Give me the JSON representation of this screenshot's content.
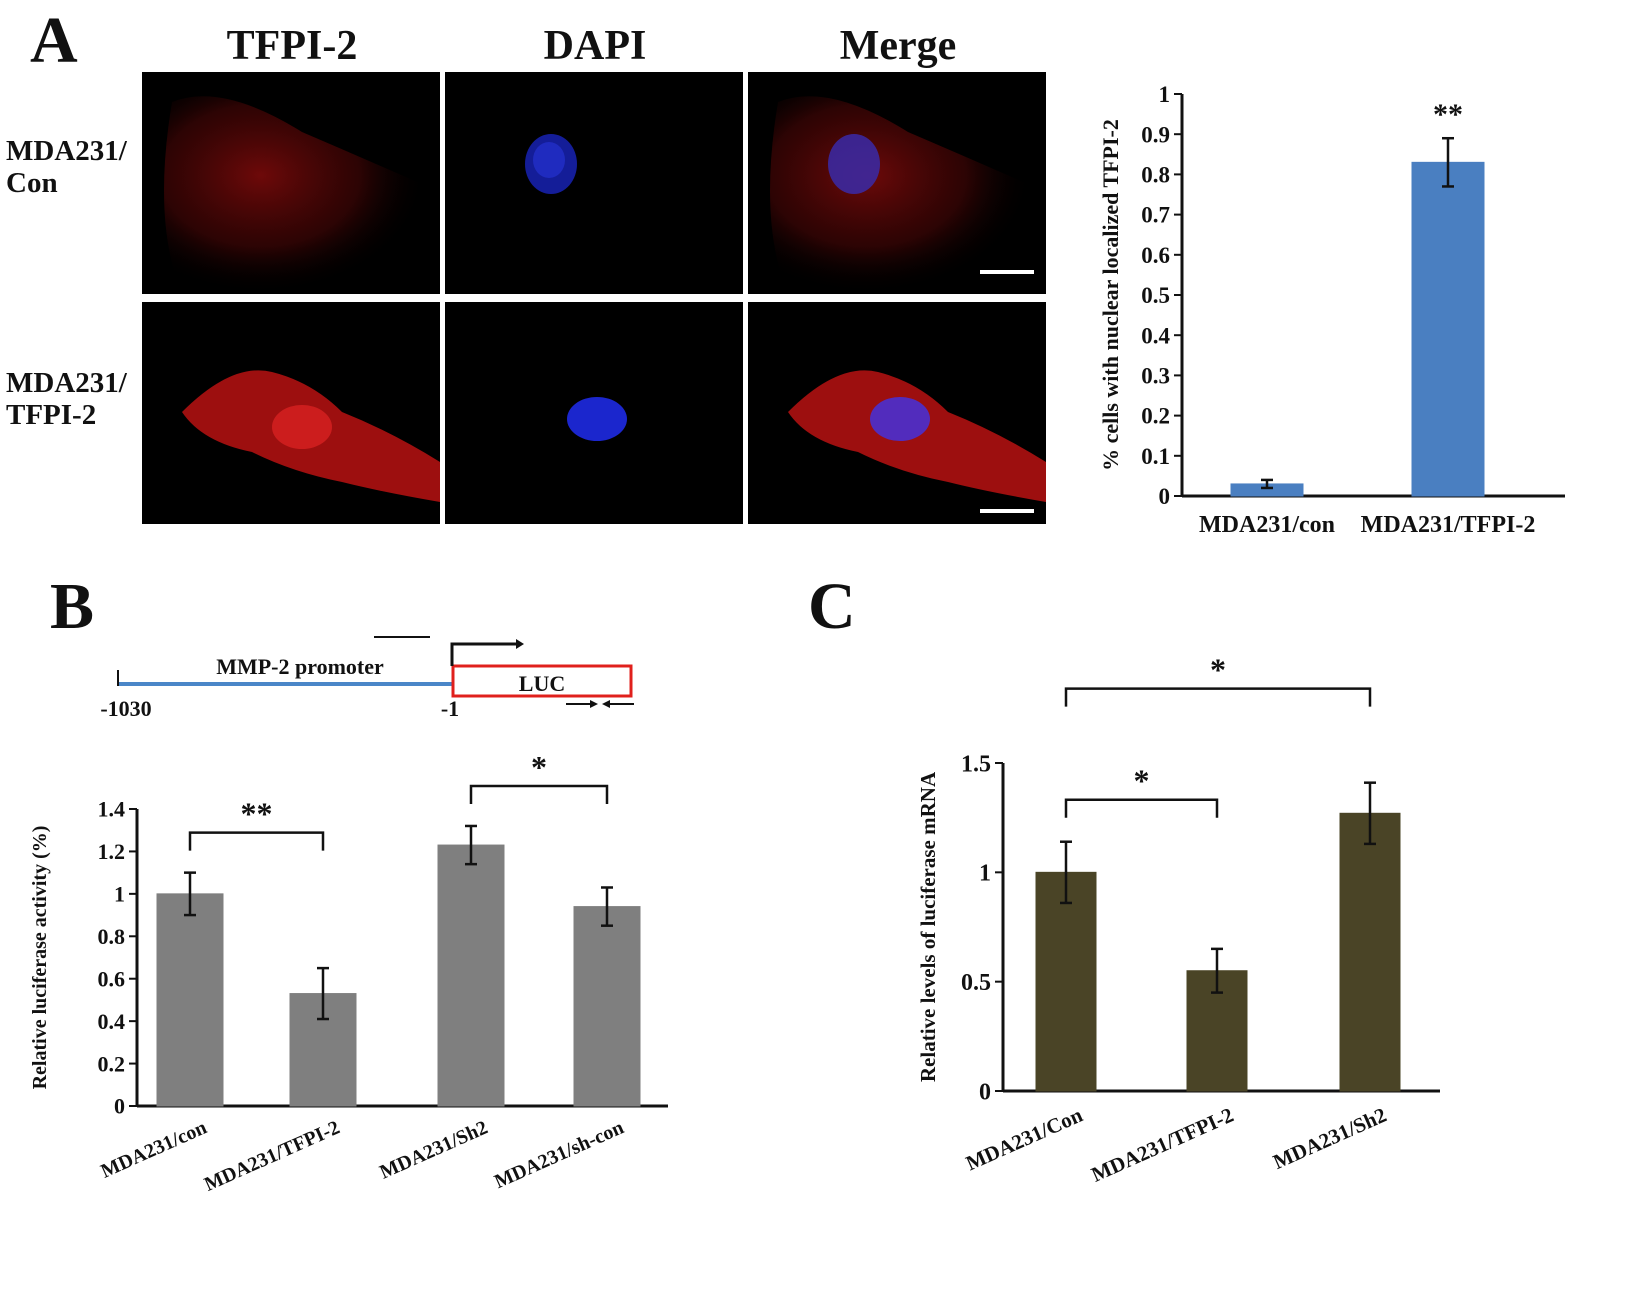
{
  "panels": {
    "a": "A",
    "b": "B",
    "c": "C"
  },
  "micrographs": {
    "columns": [
      "TFPI-2",
      "DAPI",
      "Merge"
    ],
    "rows": [
      {
        "line1": "MDA231/",
        "line2": "Con"
      },
      {
        "line1": "MDA231/",
        "line2": "TFPI-2"
      }
    ],
    "colors": {
      "tfpi2": "#d01818",
      "dapi": "#1c28d8"
    }
  },
  "construct": {
    "promoter_label": "MMP-2 promoter",
    "reporter_label": "LUC",
    "start_label": "-1030",
    "end_label": "-1",
    "colors": {
      "promoter": "#4a86c8",
      "reporter": "#e0201c"
    }
  },
  "chart_data": [
    {
      "id": "A",
      "type": "bar",
      "categories": [
        "MDA231/con",
        "MDA231/TFPI-2"
      ],
      "values": [
        0.03,
        0.83
      ],
      "errors": [
        0.01,
        0.06
      ],
      "ylabel": "% cells with nuclear localized TFPI-2",
      "ylim": [
        0,
        1
      ],
      "yticks": [
        "0",
        "0.1",
        "0.2",
        "0.3",
        "0.4",
        "0.5",
        "0.6",
        "0.7",
        "0.8",
        "0.9",
        "1"
      ],
      "bar_color": "#4a7fc1",
      "annotations": [
        {
          "category": 1,
          "text": "**"
        }
      ]
    },
    {
      "id": "B",
      "type": "bar",
      "categories": [
        "MDA231/con",
        "MDA231/TFPI-2",
        "MDA231/Sh2",
        "MDA231/sh-con"
      ],
      "values": [
        1.0,
        0.53,
        1.23,
        0.94
      ],
      "errors": [
        0.1,
        0.12,
        0.09,
        0.09
      ],
      "ylabel": "Relative luciferase activity (%)",
      "ylim": [
        0,
        1.4
      ],
      "yticks": [
        "0",
        "0.2",
        "0.4",
        "0.6",
        "0.8",
        "1",
        "1.2",
        "1.4"
      ],
      "bar_color": "#7f7f7f",
      "significance": [
        {
          "from": 0,
          "to": 1,
          "text": "**"
        },
        {
          "from": 2,
          "to": 3,
          "text": "*"
        }
      ]
    },
    {
      "id": "C",
      "type": "bar",
      "categories": [
        "MDA231/Con",
        "MDA231/TFPI-2",
        "MDA231/Sh2"
      ],
      "values": [
        1.0,
        0.55,
        1.27
      ],
      "errors": [
        0.14,
        0.1,
        0.14
      ],
      "ylabel": "Relative levels of luciferase mRNA",
      "ylim": [
        0,
        1.5
      ],
      "yticks": [
        "0",
        "0.5",
        "1",
        "1.5"
      ],
      "bar_color": "#4a4426",
      "significance": [
        {
          "from": 0,
          "to": 1,
          "text": "*"
        },
        {
          "from": 0,
          "to": 2,
          "text": "*"
        }
      ]
    }
  ]
}
